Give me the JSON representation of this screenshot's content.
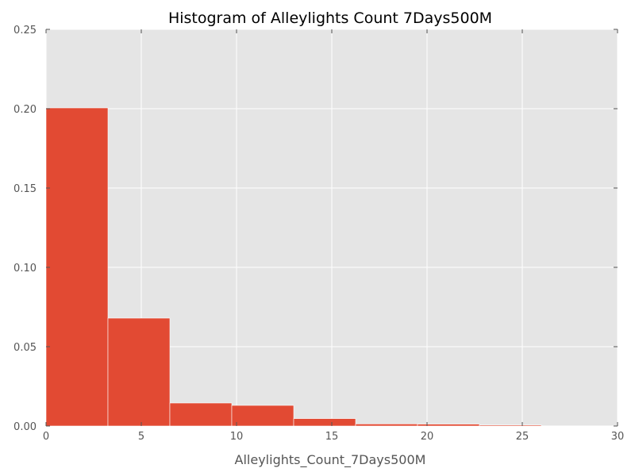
{
  "chart_data": {
    "type": "bar",
    "title": "Histogram of Alleylights Count 7Days500M",
    "xlabel": "Alleylights_Count_7Days500M",
    "ylabel": "",
    "xlim": [
      0,
      30
    ],
    "ylim": [
      0,
      0.25
    ],
    "x_ticks": [
      0,
      5,
      10,
      15,
      20,
      25,
      30
    ],
    "x_tick_labels": [
      "0",
      "5",
      "10",
      "15",
      "20",
      "25",
      "30"
    ],
    "y_ticks": [
      0.0,
      0.05,
      0.1,
      0.15,
      0.2,
      0.25
    ],
    "y_tick_labels": [
      "0.00",
      "0.05",
      "0.10",
      "0.15",
      "0.20",
      "0.25"
    ],
    "bins": [
      {
        "start": 0.0,
        "end": 3.25,
        "value": 0.2005
      },
      {
        "start": 3.25,
        "end": 6.5,
        "value": 0.068
      },
      {
        "start": 6.5,
        "end": 9.75,
        "value": 0.0145
      },
      {
        "start": 9.75,
        "end": 13.0,
        "value": 0.013
      },
      {
        "start": 13.0,
        "end": 16.25,
        "value": 0.0047
      },
      {
        "start": 16.25,
        "end": 19.5,
        "value": 0.0013
      },
      {
        "start": 19.5,
        "end": 22.75,
        "value": 0.0012
      },
      {
        "start": 22.75,
        "end": 26.0,
        "value": 0.0006
      }
    ],
    "grid": true,
    "legend": false,
    "colors": {
      "bar": "#E24A33",
      "plot_background": "#E5E5E5",
      "grid": "#FFFFFF",
      "text": "#555555"
    }
  }
}
